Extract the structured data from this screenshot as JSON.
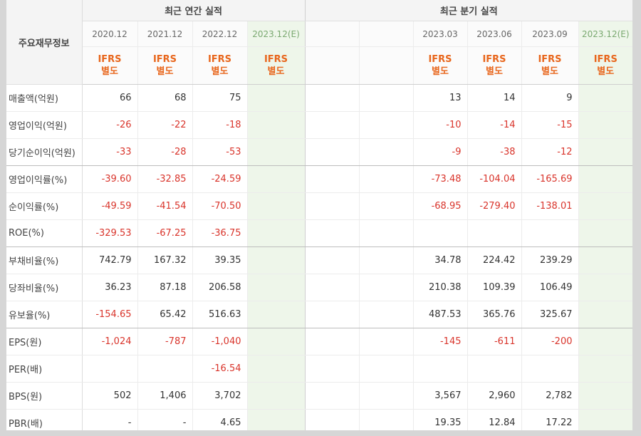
{
  "table": {
    "row_header": "주요재무정보",
    "group_annual": "최근 연간 실적",
    "group_quarterly": "최근 분기 실적",
    "annual_periods": [
      "2020.12",
      "2021.12",
      "2022.12",
      "2023.12(E)"
    ],
    "quarterly_periods": [
      "2023.03",
      "2023.06",
      "2023.09",
      "2023.12(E)"
    ],
    "ifrs_line1": "IFRS",
    "ifrs_line2": "별도",
    "rows": [
      {
        "label": "매출액(억원)",
        "annual": [
          "66",
          "68",
          "75",
          ""
        ],
        "quarterly": [
          "13",
          "14",
          "9",
          ""
        ]
      },
      {
        "label": "영업이익(억원)",
        "annual": [
          "-26",
          "-22",
          "-18",
          ""
        ],
        "quarterly": [
          "-10",
          "-14",
          "-15",
          ""
        ]
      },
      {
        "label": "당기순이익(억원)",
        "annual": [
          "-33",
          "-28",
          "-53",
          ""
        ],
        "quarterly": [
          "-9",
          "-38",
          "-12",
          ""
        ]
      },
      {
        "label": "영업이익률(%)",
        "annual": [
          "-39.60",
          "-32.85",
          "-24.59",
          ""
        ],
        "quarterly": [
          "-73.48",
          "-104.04",
          "-165.69",
          ""
        ]
      },
      {
        "label": "순이익률(%)",
        "annual": [
          "-49.59",
          "-41.54",
          "-70.50",
          ""
        ],
        "quarterly": [
          "-68.95",
          "-279.40",
          "-138.01",
          ""
        ]
      },
      {
        "label": "ROE(%)",
        "annual": [
          "-329.53",
          "-67.25",
          "-36.75",
          ""
        ],
        "quarterly": [
          "",
          "",
          "",
          ""
        ]
      },
      {
        "label": "부채비율(%)",
        "annual": [
          "742.79",
          "167.32",
          "39.35",
          ""
        ],
        "quarterly": [
          "34.78",
          "224.42",
          "239.29",
          ""
        ]
      },
      {
        "label": "당좌비율(%)",
        "annual": [
          "36.23",
          "87.18",
          "206.58",
          ""
        ],
        "quarterly": [
          "210.38",
          "109.39",
          "106.49",
          ""
        ]
      },
      {
        "label": "유보율(%)",
        "annual": [
          "-154.65",
          "65.42",
          "516.63",
          ""
        ],
        "quarterly": [
          "487.53",
          "365.76",
          "325.67",
          ""
        ]
      },
      {
        "label": "EPS(원)",
        "annual": [
          "-1,024",
          "-787",
          "-1,040",
          ""
        ],
        "quarterly": [
          "-145",
          "-611",
          "-200",
          ""
        ]
      },
      {
        "label": "PER(배)",
        "annual": [
          "",
          "",
          "-16.54",
          ""
        ],
        "quarterly": [
          "",
          "",
          "",
          ""
        ]
      },
      {
        "label": "BPS(원)",
        "annual": [
          "502",
          "1,406",
          "3,702",
          ""
        ],
        "quarterly": [
          "3,567",
          "2,960",
          "2,782",
          ""
        ]
      },
      {
        "label": "PBR(배)",
        "annual": [
          "-",
          "-",
          "4.65",
          ""
        ],
        "quarterly": [
          "19.35",
          "12.84",
          "17.22",
          ""
        ]
      }
    ],
    "colors": {
      "negative": "#d9342b",
      "ifrs": "#e8661c",
      "estimate_bg": "#eef6ea"
    }
  }
}
